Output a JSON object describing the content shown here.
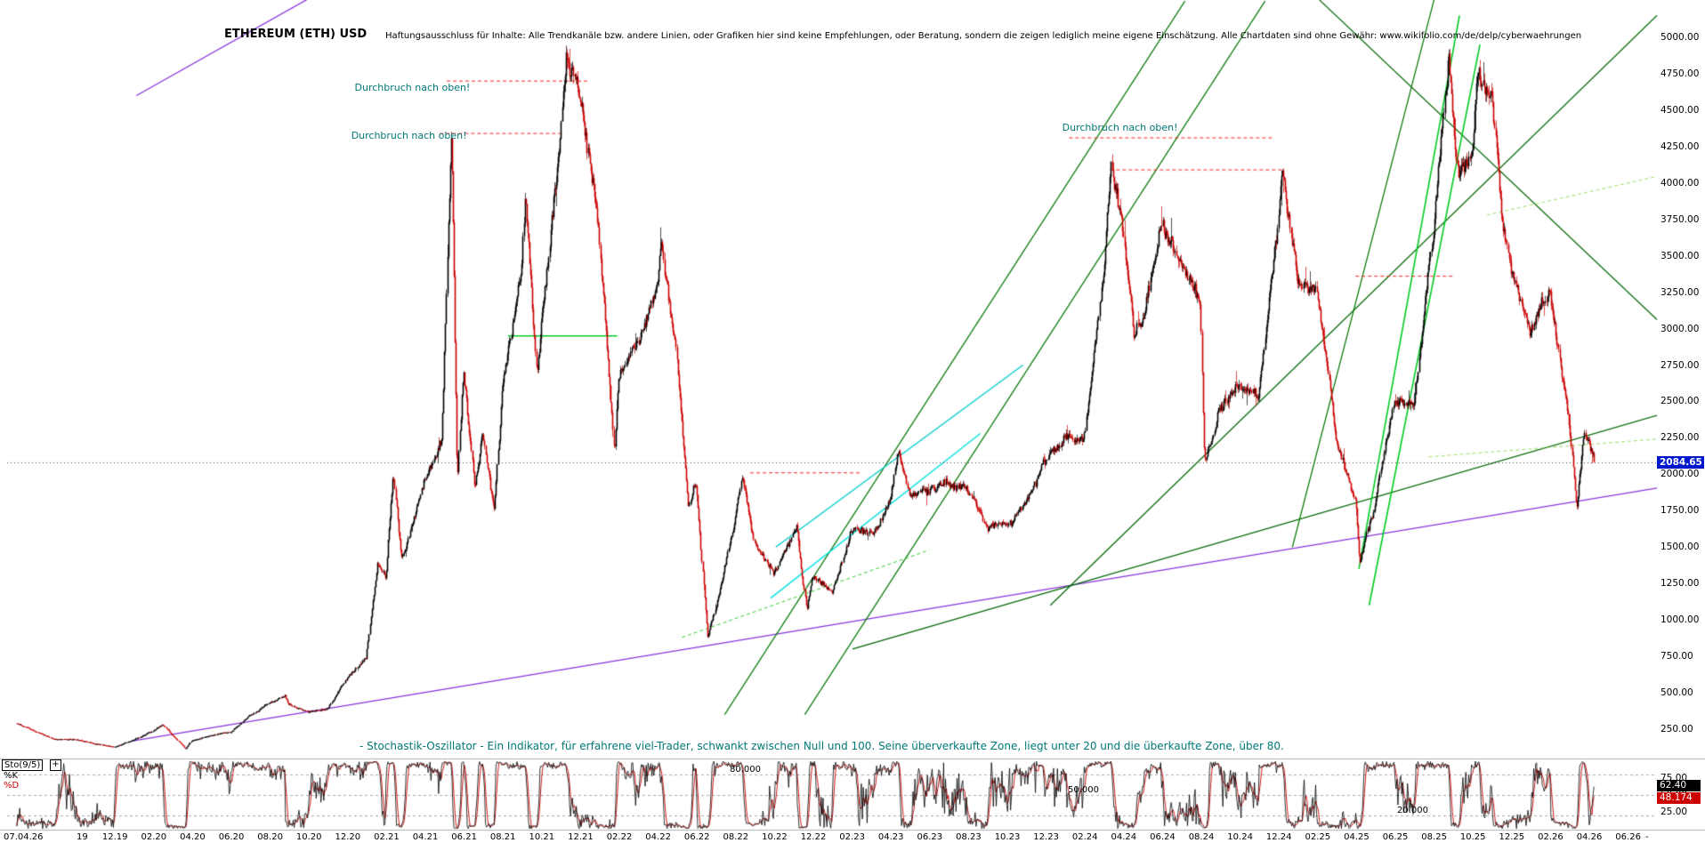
{
  "header": {
    "title": "ETHEREUM (ETH) USD",
    "disclaimer": "Haftungsausschluss für Inhalte: Alle Trendkanäle bzw. andere Linien, oder Grafiken hier sind keine Empfehlungen, oder Beratung, sondern die zeigen lediglich meine eigene Einschätzung. Alle Chartdaten sind ohne Gewähr: www.wikifolio.com/de/delp/cyberwaehrungen"
  },
  "price_axis": {
    "labels": [
      "5000.00",
      "4750.00",
      "4500.00",
      "4250.00",
      "4000.00",
      "3750.00",
      "3500.00",
      "3250.00",
      "3000.00",
      "2750.00",
      "2500.00",
      "2250.00",
      "2000.00",
      "1750.00",
      "1500.00",
      "1250.00",
      "1000.00",
      "750.00",
      "500.00",
      "250.00"
    ],
    "current": "2084.65",
    "current_value": 2084.65
  },
  "x_axis": {
    "start_label": "07.04.26",
    "year_label": "19",
    "month_labels": [
      "12.19",
      "02.20",
      "04.20",
      "06.20",
      "08.20",
      "10.20",
      "12.20",
      "02.21",
      "04.21",
      "06.21",
      "08.21",
      "10.21",
      "12.21",
      "02.22",
      "04.22",
      "06.22",
      "08.22",
      "10.22",
      "12.22",
      "02.23",
      "04.23",
      "06.23",
      "08.23",
      "10.23",
      "12.23",
      "02.24",
      "04.24",
      "06.24",
      "08.24",
      "10.24",
      "12.24",
      "02.25",
      "04.25",
      "06.25",
      "08.25",
      "10.25",
      "12.25",
      "02.26",
      "04.26",
      "06.26"
    ],
    "end_label": "-"
  },
  "annotations": [
    {
      "text": "Durchbruch nach oben!",
      "x": 0.208,
      "price": 4650
    },
    {
      "text": "Durchbruch nach oben!",
      "x": 0.206,
      "price": 4320
    },
    {
      "text": "Durchbruch nach oben!",
      "x": 0.623,
      "price": 4380
    }
  ],
  "stochastic": {
    "indicator_label": "Sto(9/5)",
    "k_label": "%K",
    "d_label": "%D",
    "k_value": "62.40",
    "d_value": "48.174",
    "axis_labels": [
      {
        "text": "75.00",
        "value": 75
      },
      {
        "text": "50.00",
        "value": 50
      },
      {
        "text": "25.00",
        "value": 25
      }
    ],
    "zone_labels": [
      {
        "text": "80.000",
        "value": 80
      },
      {
        "text": "50.000",
        "value": 50
      },
      {
        "text": "20.000",
        "value": 20
      }
    ],
    "description": "- Stochastik-Oszillator - Ein Indikator, für erfahrene viel-Trader, schwankt zwischen Null und 100. Seine überverkaufte Zone, liegt unter 20 und die überkaufte Zone, über 80."
  },
  "icons": {
    "settings_plus": "+"
  },
  "colors": {
    "background": "#ffffff",
    "candle_up": "#000000",
    "candle_down": "#cc0000",
    "current_price_line": "#444444",
    "current_price_bg": "#0018cc",
    "annotation_teal": "#007878",
    "k_line": "#000000",
    "d_line": "#cc0000",
    "zone_line": "#aaaaaa"
  },
  "chart_data": {
    "type": "candlestick",
    "title": "ETHEREUM (ETH) USD",
    "x_start": "2019-07",
    "x_end": "2026-04",
    "y_range": [
      130,
      5050
    ],
    "price_ticks": [
      250,
      500,
      750,
      1000,
      1250,
      1500,
      1750,
      2000,
      2250,
      2500,
      2750,
      3000,
      3250,
      3500,
      3750,
      4000,
      4250,
      4500,
      4750,
      5000
    ],
    "current_price": 2084.65,
    "anchors": [
      [
        0,
        290
      ],
      [
        1,
        230
      ],
      [
        2,
        180
      ],
      [
        3,
        183
      ],
      [
        4,
        150
      ],
      [
        5,
        130
      ],
      [
        6,
        180
      ],
      [
        7,
        240
      ],
      [
        7.5,
        280
      ],
      [
        8.7,
        115
      ],
      [
        9,
        175
      ],
      [
        10,
        210
      ],
      [
        11,
        228
      ],
      [
        12,
        345
      ],
      [
        13,
        430
      ],
      [
        13.8,
        480
      ],
      [
        14,
        420
      ],
      [
        15,
        360
      ],
      [
        16,
        385
      ],
      [
        17,
        600
      ],
      [
        18,
        740
      ],
      [
        18.6,
        1420
      ],
      [
        19,
        1310
      ],
      [
        19.4,
        2030
      ],
      [
        19.8,
        1420
      ],
      [
        20,
        1480
      ],
      [
        21,
        1920
      ],
      [
        21.9,
        2250
      ],
      [
        22.4,
        4380
      ],
      [
        22.7,
        1950
      ],
      [
        23,
        2700
      ],
      [
        23.6,
        1880
      ],
      [
        24,
        2270
      ],
      [
        24.6,
        1720
      ],
      [
        25,
        2530
      ],
      [
        26,
        3430
      ],
      [
        26.2,
        3950
      ],
      [
        26.8,
        2650
      ],
      [
        27,
        3000
      ],
      [
        28,
        4290
      ],
      [
        28.3,
        4870
      ],
      [
        29,
        4630
      ],
      [
        30,
        3680
      ],
      [
        30.8,
        2170
      ],
      [
        31,
        2690
      ],
      [
        32,
        2920
      ],
      [
        33,
        3280
      ],
      [
        33.2,
        3580
      ],
      [
        34,
        2820
      ],
      [
        34.6,
        1760
      ],
      [
        35,
        1940
      ],
      [
        35.6,
        890
      ],
      [
        36,
        1070
      ],
      [
        37,
        1680
      ],
      [
        37.4,
        2020
      ],
      [
        38,
        1550
      ],
      [
        39,
        1330
      ],
      [
        40,
        1570
      ],
      [
        40.2,
        1650
      ],
      [
        40.7,
        1080
      ],
      [
        41,
        1290
      ],
      [
        42,
        1200
      ],
      [
        43,
        1590
      ],
      [
        44,
        1600
      ],
      [
        45,
        1820
      ],
      [
        45.4,
        2130
      ],
      [
        46,
        1870
      ],
      [
        47,
        1870
      ],
      [
        48,
        1930
      ],
      [
        49,
        1860
      ],
      [
        50,
        1650
      ],
      [
        51,
        1670
      ],
      [
        52,
        1800
      ],
      [
        53,
        2050
      ],
      [
        54,
        2280
      ],
      [
        55,
        2280
      ],
      [
        56,
        3380
      ],
      [
        56.4,
        4090
      ],
      [
        57,
        3650
      ],
      [
        57.6,
        2870
      ],
      [
        58,
        3010
      ],
      [
        59,
        3760
      ],
      [
        60,
        3440
      ],
      [
        61,
        3230
      ],
      [
        61.2,
        2110
      ],
      [
        62,
        2510
      ],
      [
        63,
        2600
      ],
      [
        64,
        2510
      ],
      [
        65,
        3700
      ],
      [
        65.2,
        4090
      ],
      [
        66,
        3330
      ],
      [
        67,
        3300
      ],
      [
        68,
        2240
      ],
      [
        69,
        1820
      ],
      [
        69.2,
        1390
      ],
      [
        70,
        1790
      ],
      [
        71,
        2530
      ],
      [
        72,
        2490
      ],
      [
        73,
        3700
      ],
      [
        73.8,
        4950
      ],
      [
        74.3,
        4050
      ],
      [
        75,
        4300
      ],
      [
        75.3,
        4840
      ],
      [
        76,
        4750
      ],
      [
        76.5,
        3900
      ],
      [
        77,
        3400
      ],
      [
        78,
        3000
      ],
      [
        79,
        3250
      ],
      [
        80,
        2400
      ],
      [
        80.4,
        1820
      ],
      [
        80.8,
        2280
      ],
      [
        81.3,
        2084.65
      ]
    ],
    "trendlines": [
      {
        "x1": 0.08,
        "p1": 4600,
        "x2": 0.3,
        "p2": 6050,
        "color": "#8833dd",
        "w": 1.3
      },
      {
        "x1": 0.078,
        "p1": 170,
        "x2": 0.995,
        "p2": 1950,
        "color": "#8833dd",
        "w": 1.3
      },
      {
        "x1": 0.425,
        "p1": 350,
        "x2": 0.695,
        "p2": 5250,
        "color": "#007700",
        "w": 1.2
      },
      {
        "x1": 0.472,
        "p1": 350,
        "x2": 0.742,
        "p2": 5250,
        "color": "#007700",
        "w": 1.2
      },
      {
        "x1": 0.5,
        "p1": 800,
        "x2": 1.0,
        "p2": 2500,
        "color": "#006600",
        "w": 1.2
      },
      {
        "x1": 0.616,
        "p1": 1100,
        "x2": 0.985,
        "p2": 5300,
        "color": "#006600",
        "w": 1.2
      },
      {
        "x1": 0.77,
        "p1": 5300,
        "x2": 1.0,
        "p2": 2750,
        "color": "#006600",
        "w": 1.2
      },
      {
        "x1": 0.797,
        "p1": 1350,
        "x2": 0.856,
        "p2": 5150,
        "color": "#00cc22",
        "w": 1.6
      },
      {
        "x1": 0.803,
        "p1": 1100,
        "x2": 0.868,
        "p2": 4950,
        "color": "#00cc22",
        "w": 1.6
      },
      {
        "x1": 0.758,
        "p1": 1500,
        "x2": 0.842,
        "p2": 5300,
        "color": "#007700",
        "w": 1.2
      },
      {
        "x1": 0.455,
        "p1": 1500,
        "x2": 0.6,
        "p2": 2750,
        "color": "#00cccc",
        "w": 1.4
      },
      {
        "x1": 0.452,
        "p1": 1150,
        "x2": 0.575,
        "p2": 2280,
        "color": "#00e0e0",
        "w": 1.4
      },
      {
        "x1": 0.262,
        "p1": 4700,
        "x2": 0.345,
        "p2": 4700,
        "color": "#ff2222",
        "w": 1,
        "dash": [
          4,
          3
        ]
      },
      {
        "x1": 0.258,
        "p1": 4340,
        "x2": 0.33,
        "p2": 4340,
        "color": "#ff2222",
        "w": 1,
        "dash": [
          4,
          3
        ]
      },
      {
        "x1": 0.651,
        "p1": 4090,
        "x2": 0.752,
        "p2": 4090,
        "color": "#ff2222",
        "w": 1,
        "dash": [
          4,
          3
        ]
      },
      {
        "x1": 0.627,
        "p1": 4310,
        "x2": 0.747,
        "p2": 4310,
        "color": "#ff2222",
        "w": 1,
        "dash": [
          4,
          3
        ]
      },
      {
        "x1": 0.795,
        "p1": 3360,
        "x2": 0.852,
        "p2": 3360,
        "color": "#ff2222",
        "w": 1,
        "dash": [
          4,
          3
        ]
      },
      {
        "x1": 0.44,
        "p1": 2010,
        "x2": 0.505,
        "p2": 2010,
        "color": "#ff2222",
        "w": 1,
        "dash": [
          4,
          3
        ]
      },
      {
        "x1": 0.298,
        "p1": 2950,
        "x2": 0.362,
        "p2": 2950,
        "color": "#00cc22",
        "w": 1.5
      },
      {
        "x1": 0.4,
        "p1": 880,
        "x2": 0.545,
        "p2": 1480,
        "color": "#33cc33",
        "w": 1,
        "dash": [
          4,
          3
        ]
      },
      {
        "x1": 0.838,
        "p1": 2120,
        "x2": 0.992,
        "p2": 2260,
        "color": "#99dd66",
        "w": 1,
        "dash": [
          4,
          3
        ]
      },
      {
        "x1": 0.872,
        "p1": 3780,
        "x2": 1.0,
        "p2": 4120,
        "color": "#99dd66",
        "w": 1,
        "dash": [
          4,
          3
        ]
      }
    ],
    "indicators": {
      "stochastic_9_5": {
        "k": 62.4,
        "d": 48.174,
        "overbought": 80,
        "mid": 50,
        "oversold": 20
      }
    }
  }
}
